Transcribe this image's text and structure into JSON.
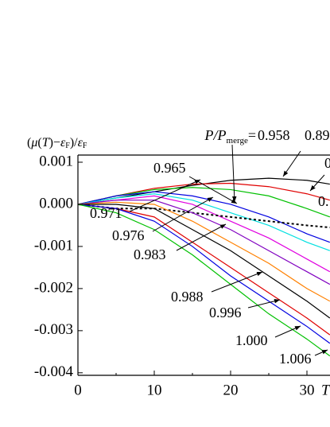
{
  "chart_data": {
    "type": "line",
    "y_label": [
      "(",
      "μ",
      "(",
      "T",
      ")−",
      "ε",
      "F",
      ")/",
      "ε",
      "F"
    ],
    "x_label": "T",
    "annotation": {
      "text": "P/P",
      "subscript": "merge",
      "suffix": "="
    },
    "extra_labels": [
      "0",
      "0."
    ],
    "x": [
      0,
      5,
      10,
      15,
      20,
      25,
      30,
      33
    ],
    "xlim": [
      0,
      33
    ],
    "xticks": [
      0,
      10,
      20,
      30
    ],
    "ylim": [
      -0.00406,
      0.00117
    ],
    "yticks": [
      {
        "value": -0.004,
        "label": "-0.004"
      },
      {
        "value": -0.003,
        "label": "-0.003"
      },
      {
        "value": -0.002,
        "label": "-0.002"
      },
      {
        "value": -0.001,
        "label": "-0.001"
      },
      {
        "value": 0,
        "label": "0.000"
      },
      {
        "value": 0.001,
        "label": "0.001"
      }
    ],
    "series": [
      {
        "name": "0.89",
        "color": "#000000",
        "values": [
          0,
          0.00015,
          0.0003,
          0.00045,
          0.00057,
          0.00062,
          0.00057,
          0.00048
        ]
      },
      {
        "color": "#e00000",
        "values": [
          0,
          0.0002,
          0.00038,
          0.00048,
          0.0005,
          0.00042,
          0.00025,
          0.0001
        ]
      },
      {
        "name": "0.958",
        "color": "#00c000",
        "values": [
          0,
          0.0002,
          0.00035,
          0.0004,
          0.00035,
          0.0002,
          -0.0001,
          -0.0003
        ]
      },
      {
        "name": "0.965",
        "color": "#0000e0",
        "values": [
          0,
          0.0002,
          0.0003,
          0.0002,
          0,
          -0.0003,
          -0.0007,
          -0.0009
        ]
      },
      {
        "color": "#00e0e0",
        "values": [
          0,
          0.00015,
          0.00025,
          0.0001,
          -0.0002,
          -0.0005,
          -0.0009,
          -0.0011
        ]
      },
      {
        "name": "0.971",
        "color": "#e000e0",
        "values": [
          0,
          0.0001,
          0.0002,
          0,
          -0.0004,
          -0.0008,
          -0.0013,
          -0.0016
        ]
      },
      {
        "color": "#000000",
        "dashed": true,
        "values": [
          0,
          -0.0001,
          -0.0001,
          -0.0002,
          -0.0003,
          -0.0004,
          -0.0005,
          -0.00055
        ]
      },
      {
        "name": "0.976",
        "color": "#8000c0",
        "values": [
          0,
          0.0001,
          0.0001,
          -0.0002,
          -0.0006,
          -0.0011,
          -0.0016,
          -0.0019
        ]
      },
      {
        "name": "0.983",
        "color": "#ff8000",
        "values": [
          0,
          5e-05,
          0,
          -0.0004,
          -0.0009,
          -0.0014,
          -0.002,
          -0.0023
        ]
      },
      {
        "name": "0.988",
        "color": "#000000",
        "values": [
          0,
          0,
          -0.0001,
          -0.0006,
          -0.0011,
          -0.0017,
          -0.0023,
          -0.0027
        ]
      },
      {
        "name": "0.996",
        "color": "#e00000",
        "values": [
          0,
          -0.0001,
          -0.0003,
          -0.0009,
          -0.0015,
          -0.0021,
          -0.0027,
          -0.0031
        ]
      },
      {
        "name": "1.000",
        "color": "#0000e0",
        "values": [
          0,
          -0.0001,
          -0.0004,
          -0.001,
          -0.0017,
          -0.0023,
          -0.0029,
          -0.0033
        ]
      },
      {
        "name": "1.006",
        "color": "#00c000",
        "values": [
          0,
          -0.0002,
          -0.0006,
          -0.0012,
          -0.0019,
          -0.0026,
          -0.0032,
          -0.0036
        ]
      }
    ]
  }
}
